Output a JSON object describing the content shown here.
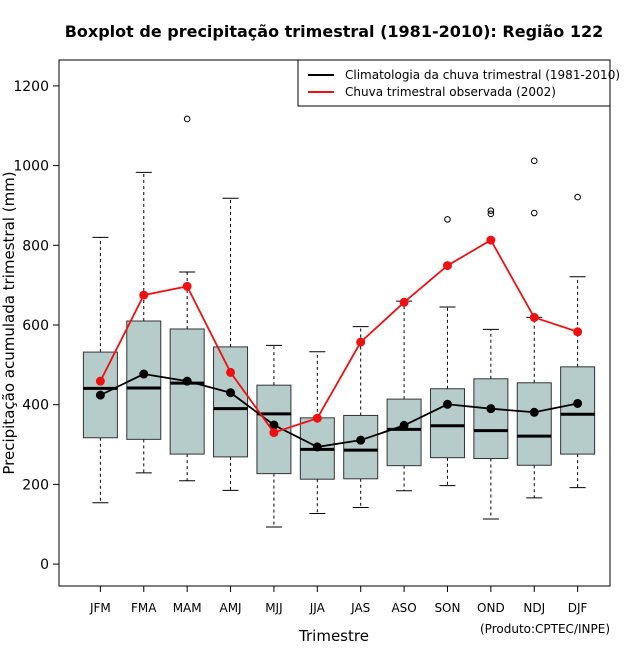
{
  "chart_data": {
    "type": "boxplot",
    "title": "Boxplot de precipitação trimestral (1981-2010): Região 122",
    "xlabel": "Trimestre",
    "ylabel": "Precipitação acumulada trimestral (mm)",
    "ylim": [
      -55,
      1265
    ],
    "yticks": [
      0,
      200,
      400,
      600,
      800,
      1000,
      1200
    ],
    "credit": "(Produto:CPTEC/INPE)",
    "colors": {
      "box_fill": "#b6cccb",
      "climatology": "#000000",
      "observed": "#ee1111"
    },
    "categories": [
      "JFM",
      "FMA",
      "MAM",
      "AMJ",
      "MJJ",
      "JJA",
      "JAS",
      "ASO",
      "SON",
      "OND",
      "NDJ",
      "DJF"
    ],
    "boxes": [
      {
        "q1": 317,
        "median": 441,
        "q3": 532,
        "whisker_low": 154,
        "whisker_high": 820,
        "outliers": []
      },
      {
        "q1": 313,
        "median": 442,
        "q3": 610,
        "whisker_low": 229,
        "whisker_high": 983,
        "outliers": []
      },
      {
        "q1": 276,
        "median": 454,
        "q3": 590,
        "whisker_low": 209,
        "whisker_high": 733,
        "outliers": [
          1117
        ]
      },
      {
        "q1": 269,
        "median": 390,
        "q3": 545,
        "whisker_low": 185,
        "whisker_high": 918,
        "outliers": []
      },
      {
        "q1": 227,
        "median": 377,
        "q3": 449,
        "whisker_low": 93,
        "whisker_high": 549,
        "outliers": []
      },
      {
        "q1": 213,
        "median": 288,
        "q3": 367,
        "whisker_low": 127,
        "whisker_high": 533,
        "outliers": []
      },
      {
        "q1": 214,
        "median": 286,
        "q3": 373,
        "whisker_low": 142,
        "whisker_high": 596,
        "outliers": []
      },
      {
        "q1": 247,
        "median": 338,
        "q3": 414,
        "whisker_low": 184,
        "whisker_high": 660,
        "outliers": []
      },
      {
        "q1": 267,
        "median": 347,
        "q3": 440,
        "whisker_low": 197,
        "whisker_high": 645,
        "outliers": [
          865
        ]
      },
      {
        "q1": 265,
        "median": 335,
        "q3": 465,
        "whisker_low": 113,
        "whisker_high": 589,
        "outliers": [
          879,
          887
        ]
      },
      {
        "q1": 248,
        "median": 321,
        "q3": 455,
        "whisker_low": 166,
        "whisker_high": 619,
        "outliers": [
          881,
          1012
        ]
      },
      {
        "q1": 276,
        "median": 376,
        "q3": 495,
        "whisker_low": 192,
        "whisker_high": 721,
        "outliers": [
          921
        ]
      }
    ],
    "series": [
      {
        "name": "Climatologia da chuva trimestral (1981-2010)",
        "values": [
          424,
          477,
          459,
          430,
          349,
          294,
          311,
          348,
          401,
          390,
          381,
          403
        ]
      },
      {
        "name": "Chuva trimestral observada (2002)",
        "values": [
          459,
          675,
          697,
          481,
          330,
          366,
          557,
          657,
          749,
          813,
          619,
          583
        ]
      }
    ],
    "legend_position": "top-right"
  }
}
